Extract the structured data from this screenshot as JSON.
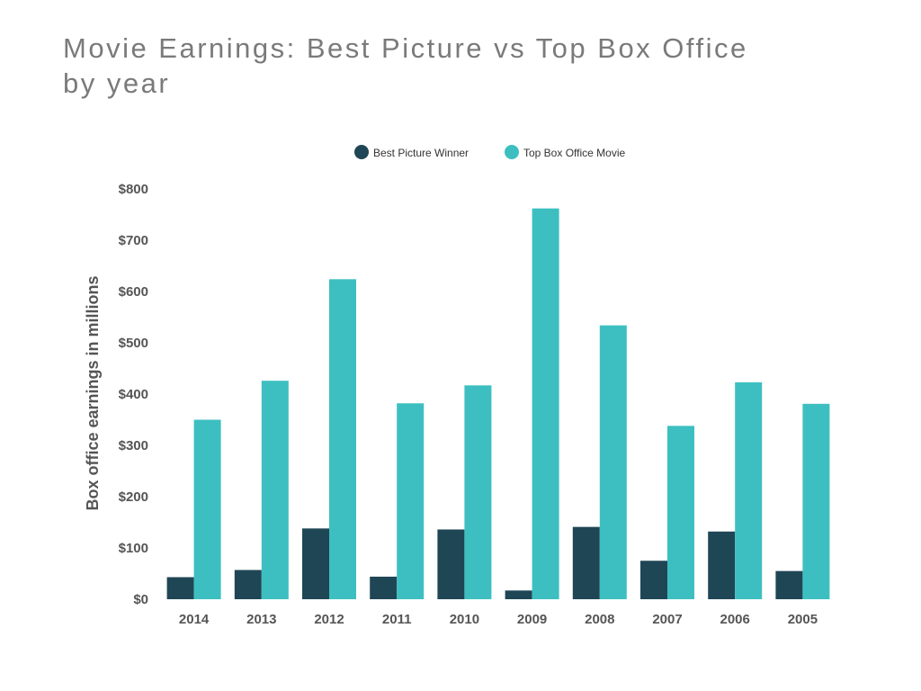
{
  "chart_data": {
    "type": "bar",
    "title": "Movie Earnings: Best Picture vs Top Box Office",
    "subtitle": "by year",
    "xlabel": "",
    "ylabel": "Box office earnings in millions",
    "categories": [
      "2014",
      "2013",
      "2012",
      "2011",
      "2010",
      "2009",
      "2008",
      "2007",
      "2006",
      "2005"
    ],
    "series": [
      {
        "name": "Best Picture Winner",
        "color": "#1f4655",
        "values": [
          43,
          57,
          138,
          44,
          136,
          17,
          141,
          75,
          132,
          55
        ]
      },
      {
        "name": "Top Box Office Movie",
        "color": "#3dbfc1",
        "values": [
          350,
          426,
          624,
          382,
          417,
          762,
          534,
          338,
          423,
          381
        ]
      }
    ],
    "ylim": [
      0,
      800
    ],
    "yticks": [
      "$0",
      "$100",
      "$200",
      "$300",
      "$400",
      "$500",
      "$600",
      "$700",
      "$800"
    ],
    "grid": false,
    "legend_position": "top-center"
  }
}
